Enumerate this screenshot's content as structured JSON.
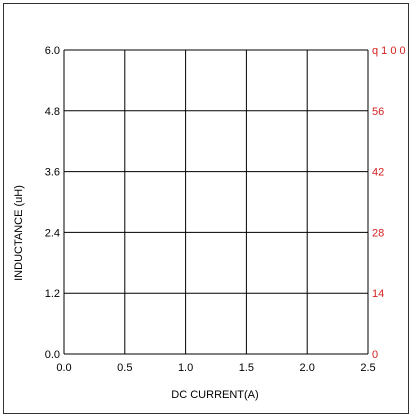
{
  "chart_data": {
    "type": "line",
    "title": "",
    "xlabel": "DC CURRENT(A)",
    "ylabel": "INDUCTANCE (uH)",
    "xlim": [
      0.0,
      2.5
    ],
    "ylim": [
      0.0,
      6.0
    ],
    "x_ticks": [
      "0.0",
      "0.5",
      "1.0",
      "1.5",
      "2.0",
      "2.5"
    ],
    "y_ticks": [
      "0.0",
      "1.2",
      "2.4",
      "3.6",
      "4.8",
      "6.0"
    ],
    "y2_ticks": [
      "0",
      "14",
      "28",
      "42",
      "56",
      "q 1 0 0"
    ],
    "y2_color": "#d42020",
    "grid": true,
    "series": []
  }
}
